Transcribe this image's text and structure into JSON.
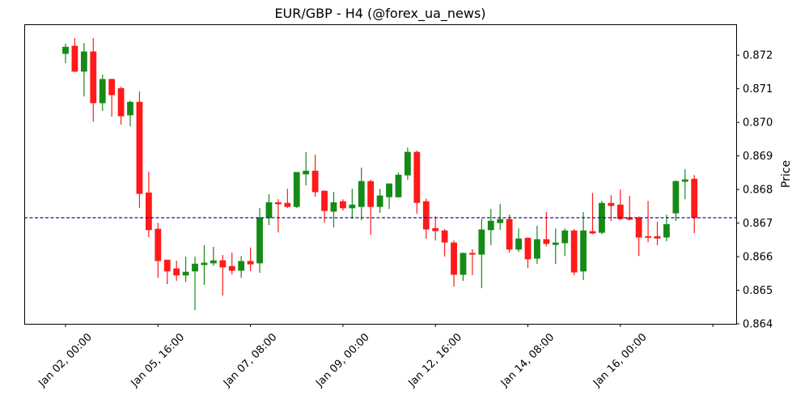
{
  "chart_data": {
    "type": "candlestick",
    "title": "EUR/GBP - H4 (@forex_ua_news)",
    "xlabel": "",
    "ylabel": "Price",
    "ylim": [
      0.864,
      0.87292
    ],
    "y_ticks": [
      "0.864",
      "0.865",
      "0.866",
      "0.867",
      "0.868",
      "0.869",
      "0.870",
      "0.871",
      "0.872"
    ],
    "y_tick_values": [
      0.864,
      0.865,
      0.866,
      0.867,
      0.868,
      0.869,
      0.87,
      0.871,
      0.872
    ],
    "x_tick_labels": [
      "Jan 02, 00:00",
      "Jan 05, 16:00",
      "Jan 07, 08:00",
      "Jan 09, 00:00",
      "Jan 12, 16:00",
      "Jan 14, 08:00",
      "Jan 16, 00:00",
      ""
    ],
    "x_tick_every": 10,
    "y_axis_side": "right",
    "grid": false,
    "colors": {
      "up": "#168a16",
      "down": "#ff1a1a",
      "hline": "#00008b"
    },
    "hline": 0.86716,
    "ohlc_fields": [
      "open",
      "high",
      "low",
      "close"
    ],
    "ohlc": [
      [
        0.87205,
        0.87234,
        0.87176,
        0.87224
      ],
      [
        0.87227,
        0.87251,
        0.87149,
        0.87152
      ],
      [
        0.87152,
        0.87236,
        0.87077,
        0.8721
      ],
      [
        0.8721,
        0.87251,
        0.87002,
        0.87058
      ],
      [
        0.87058,
        0.87142,
        0.87034,
        0.87128
      ],
      [
        0.87128,
        0.8713,
        0.87017,
        0.87082
      ],
      [
        0.87101,
        0.87106,
        0.86993,
        0.87019
      ],
      [
        0.87022,
        0.87065,
        0.86988,
        0.8706
      ],
      [
        0.8706,
        0.87092,
        0.86745,
        0.86788
      ],
      [
        0.8679,
        0.86853,
        0.86658,
        0.8668
      ],
      [
        0.86682,
        0.86701,
        0.86537,
        0.86588
      ],
      [
        0.8659,
        0.8659,
        0.86518,
        0.86557
      ],
      [
        0.86564,
        0.86588,
        0.86528,
        0.86545
      ],
      [
        0.86545,
        0.866,
        0.86525,
        0.86554
      ],
      [
        0.86557,
        0.866,
        0.86441,
        0.86578
      ],
      [
        0.86576,
        0.86634,
        0.86516,
        0.86581
      ],
      [
        0.86581,
        0.86629,
        0.86573,
        0.86588
      ],
      [
        0.86588,
        0.86605,
        0.86484,
        0.86569
      ],
      [
        0.86571,
        0.86612,
        0.86547,
        0.86559
      ],
      [
        0.86559,
        0.86602,
        0.86537,
        0.86586
      ],
      [
        0.86586,
        0.86627,
        0.86557,
        0.86578
      ],
      [
        0.86581,
        0.86745,
        0.86552,
        0.86716
      ],
      [
        0.86716,
        0.86786,
        0.86694,
        0.86761
      ],
      [
        0.86761,
        0.86771,
        0.86672,
        0.86757
      ],
      [
        0.86759,
        0.86802,
        0.86745,
        0.86749
      ],
      [
        0.86749,
        0.86851,
        0.86745,
        0.86851
      ],
      [
        0.86846,
        0.86911,
        0.86812,
        0.86855
      ],
      [
        0.86855,
        0.86904,
        0.86778,
        0.86793
      ],
      [
        0.86795,
        0.86798,
        0.86701,
        0.86737
      ],
      [
        0.86735,
        0.86793,
        0.86687,
        0.86761
      ],
      [
        0.86764,
        0.86771,
        0.86737,
        0.86745
      ],
      [
        0.86745,
        0.86802,
        0.86713,
        0.86754
      ],
      [
        0.86749,
        0.86865,
        0.86708,
        0.86824
      ],
      [
        0.86824,
        0.86829,
        0.86665,
        0.86749
      ],
      [
        0.86749,
        0.86802,
        0.8673,
        0.86781
      ],
      [
        0.86778,
        0.86817,
        0.86742,
        0.86817
      ],
      [
        0.86778,
        0.86851,
        0.86776,
        0.86843
      ],
      [
        0.86843,
        0.86925,
        0.86829,
        0.86911
      ],
      [
        0.86911,
        0.86916,
        0.86728,
        0.86761
      ],
      [
        0.86764,
        0.86773,
        0.86653,
        0.86682
      ],
      [
        0.86684,
        0.8672,
        0.86648,
        0.86677
      ],
      [
        0.86677,
        0.86682,
        0.866,
        0.86643
      ],
      [
        0.86641,
        0.86648,
        0.86511,
        0.86547
      ],
      [
        0.86547,
        0.86612,
        0.86528,
        0.8661
      ],
      [
        0.8661,
        0.86622,
        0.86545,
        0.86607
      ],
      [
        0.86607,
        0.86713,
        0.86506,
        0.8668
      ],
      [
        0.8668,
        0.86742,
        0.86634,
        0.86706
      ],
      [
        0.86701,
        0.86757,
        0.8668,
        0.86711
      ],
      [
        0.86711,
        0.86725,
        0.86612,
        0.86622
      ],
      [
        0.86622,
        0.86684,
        0.86614,
        0.86653
      ],
      [
        0.86655,
        0.86658,
        0.86566,
        0.86593
      ],
      [
        0.86595,
        0.86692,
        0.86578,
        0.86651
      ],
      [
        0.86651,
        0.86733,
        0.86631,
        0.86639
      ],
      [
        0.86636,
        0.86684,
        0.86578,
        0.86641
      ],
      [
        0.86641,
        0.86684,
        0.86602,
        0.86677
      ],
      [
        0.86677,
        0.86682,
        0.86545,
        0.86554
      ],
      [
        0.86557,
        0.86733,
        0.8653,
        0.86677
      ],
      [
        0.86675,
        0.8679,
        0.86667,
        0.8667
      ],
      [
        0.86672,
        0.86766,
        0.86667,
        0.86759
      ],
      [
        0.86759,
        0.86783,
        0.86706,
        0.86752
      ],
      [
        0.86754,
        0.868,
        0.86708,
        0.86713
      ],
      [
        0.86716,
        0.86781,
        0.86708,
        0.86711
      ],
      [
        0.86716,
        0.8672,
        0.86602,
        0.86658
      ],
      [
        0.8666,
        0.86766,
        0.86643,
        0.86658
      ],
      [
        0.8666,
        0.86704,
        0.86634,
        0.86655
      ],
      [
        0.86658,
        0.86725,
        0.86646,
        0.86696
      ],
      [
        0.8673,
        0.86827,
        0.86706,
        0.86824
      ],
      [
        0.86824,
        0.8686,
        0.86771,
        0.86829
      ],
      [
        0.86831,
        0.86843,
        0.8667,
        0.86716
      ]
    ]
  }
}
